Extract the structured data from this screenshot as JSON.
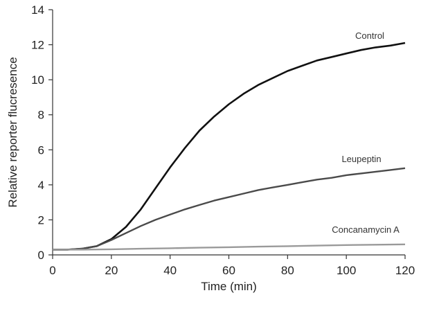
{
  "chart_data": {
    "type": "line",
    "xlabel": "Time (min)",
    "ylabel": "Relative reporter flucresence",
    "xlim": [
      0,
      120
    ],
    "ylim": [
      0,
      14
    ],
    "x_ticks": [
      0,
      20,
      40,
      60,
      80,
      100,
      120
    ],
    "y_ticks": [
      0,
      2,
      4,
      6,
      8,
      10,
      12,
      14
    ],
    "x_tick_labels": [
      "0",
      "20",
      "40",
      "60",
      "80",
      "100",
      "120"
    ],
    "y_tick_labels": [
      "0",
      "2",
      "4",
      "6",
      "8",
      "10",
      "12",
      "14"
    ],
    "grid": false,
    "legend": "direct labels",
    "series": [
      {
        "name": "Control",
        "color": "#111111",
        "x": [
          0,
          5,
          10,
          15,
          20,
          25,
          30,
          35,
          40,
          45,
          50,
          55,
          60,
          65,
          70,
          75,
          80,
          85,
          90,
          95,
          100,
          105,
          110,
          115,
          120
        ],
        "y": [
          0.3,
          0.3,
          0.35,
          0.5,
          0.9,
          1.6,
          2.6,
          3.8,
          5.0,
          6.1,
          7.1,
          7.9,
          8.6,
          9.2,
          9.7,
          10.1,
          10.5,
          10.8,
          11.1,
          11.3,
          11.5,
          11.7,
          11.85,
          11.95,
          12.1
        ]
      },
      {
        "name": "Leupeptin",
        "color": "#4a4a4a",
        "x": [
          0,
          5,
          10,
          15,
          20,
          25,
          30,
          35,
          40,
          45,
          50,
          55,
          60,
          65,
          70,
          75,
          80,
          85,
          90,
          95,
          100,
          105,
          110,
          115,
          120
        ],
        "y": [
          0.3,
          0.3,
          0.35,
          0.5,
          0.85,
          1.25,
          1.65,
          2.0,
          2.3,
          2.6,
          2.85,
          3.1,
          3.3,
          3.5,
          3.7,
          3.85,
          4.0,
          4.15,
          4.3,
          4.4,
          4.55,
          4.65,
          4.75,
          4.85,
          4.95
        ]
      },
      {
        "name": "Concanamycin A",
        "color": "#9a9a9a",
        "x": [
          0,
          10,
          20,
          30,
          40,
          50,
          60,
          70,
          80,
          90,
          100,
          110,
          120
        ],
        "y": [
          0.3,
          0.3,
          0.32,
          0.35,
          0.38,
          0.41,
          0.44,
          0.47,
          0.5,
          0.53,
          0.56,
          0.58,
          0.6
        ]
      }
    ]
  }
}
